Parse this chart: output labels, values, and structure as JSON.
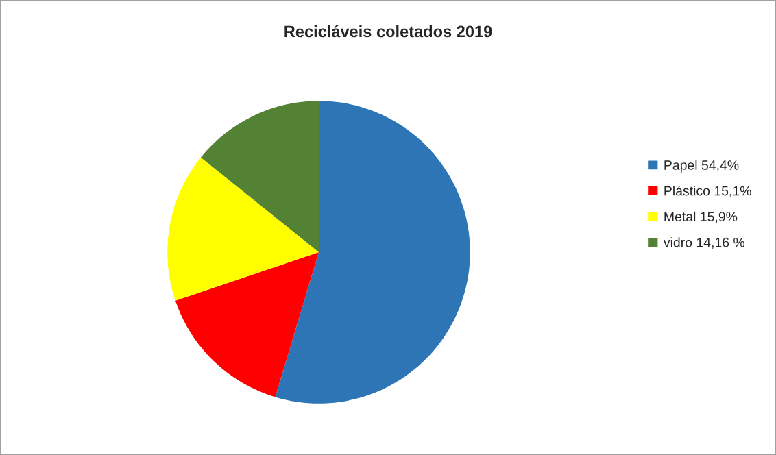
{
  "chart_data": {
    "type": "pie",
    "title": "Recicláveis coletados 2019",
    "categories": [
      "Papel 54,4%",
      "Plástico 15,1%",
      "Metal 15,9%",
      "vidro 14,16 %"
    ],
    "values": [
      54.4,
      15.1,
      15.9,
      14.16
    ],
    "colors": [
      "#2e75b6",
      "#ff0000",
      "#ffff00",
      "#548235"
    ],
    "legend": "right"
  }
}
